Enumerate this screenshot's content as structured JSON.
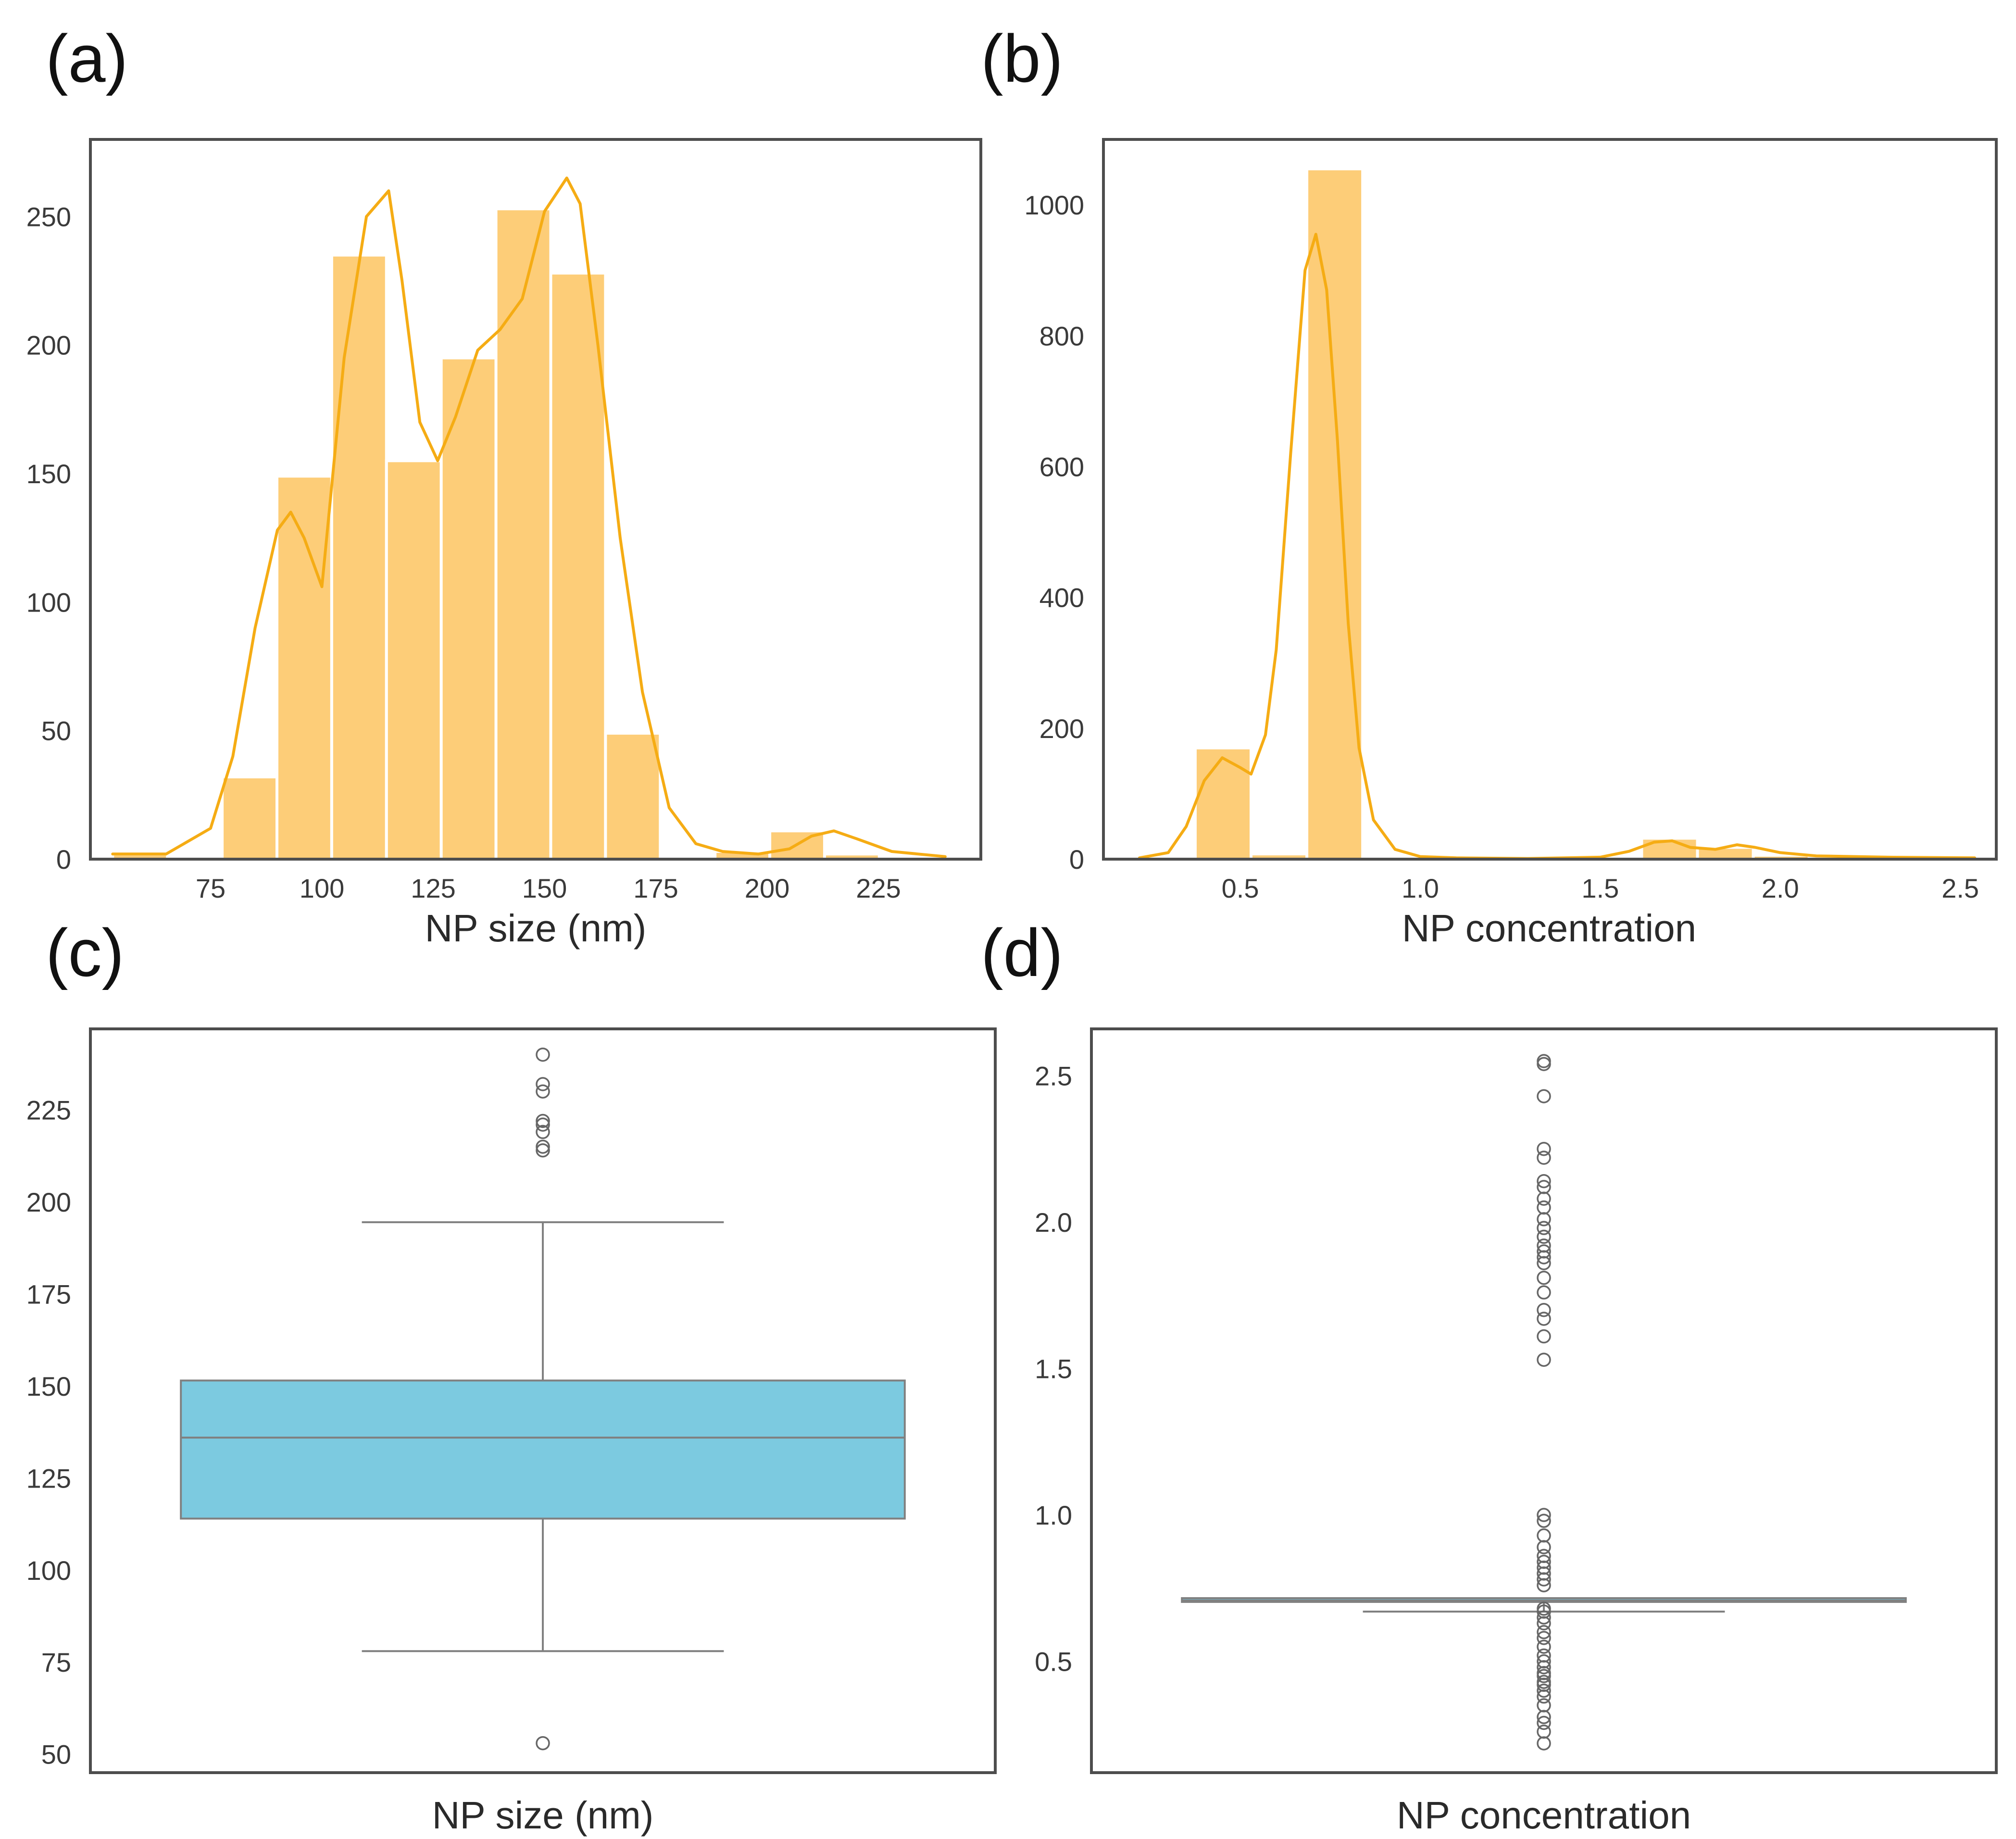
{
  "colors": {
    "hist_fill": "#fdcd78",
    "hist_edge": "#ffffff",
    "kde_line": "#f5ac14",
    "box_fill": "#7ccae0",
    "box_fill_d": "#7ab9cd",
    "box_line": "#808080",
    "frame": "#4d4d4d"
  },
  "chart_data": [
    {
      "panel": "(a)",
      "type": "bar",
      "subtype": "histogram-with-kde",
      "xlabel": "NP size (nm)",
      "ylabel": "",
      "xlim": [
        48,
        248
      ],
      "ylim": [
        0,
        280
      ],
      "xticks": [
        75,
        100,
        125,
        150,
        175,
        200,
        225
      ],
      "xtick_labels": [
        "75",
        "100",
        "125",
        "150",
        "175",
        "200",
        "225"
      ],
      "yticks": [
        0,
        50,
        100,
        150,
        200,
        250
      ],
      "ytick_labels": [
        "0",
        "50",
        "100",
        "150",
        "200",
        "250"
      ],
      "bin_edges": [
        53.0,
        65.3,
        77.6,
        89.9,
        102.2,
        114.5,
        126.8,
        139.1,
        151.4,
        163.7,
        176.0,
        188.3,
        200.6,
        212.9,
        225.2,
        237.5
      ],
      "counts": [
        2,
        0,
        32,
        149,
        235,
        155,
        195,
        253,
        228,
        49,
        0,
        3,
        11,
        2,
        1
      ],
      "kde_x": [
        53,
        65,
        75,
        80,
        85,
        90,
        93,
        96,
        100,
        105,
        110,
        115,
        118,
        122,
        126,
        130,
        135,
        140,
        145,
        150,
        155,
        158,
        162,
        167,
        172,
        178,
        184,
        190,
        198,
        205,
        210,
        215,
        220,
        228,
        240
      ],
      "kde_y": [
        2,
        2,
        12,
        40,
        90,
        128,
        135,
        125,
        106,
        195,
        250,
        260,
        225,
        170,
        155,
        172,
        198,
        206,
        218,
        252,
        265,
        255,
        200,
        125,
        65,
        20,
        6,
        3,
        2,
        4,
        9,
        11,
        8,
        3,
        1
      ]
    },
    {
      "panel": "(b)",
      "type": "bar",
      "subtype": "histogram-with-kde",
      "xlabel": "NP concentration",
      "ylabel": "",
      "xlim": [
        0.12,
        2.6
      ],
      "ylim": [
        0,
        1100
      ],
      "xticks": [
        0.5,
        1.0,
        1.5,
        2.0,
        2.5
      ],
      "xtick_labels": [
        "0.5",
        "1.0",
        "1.5",
        "2.0",
        "2.5"
      ],
      "yticks": [
        0,
        200,
        400,
        600,
        800,
        1000
      ],
      "ytick_labels": [
        "0",
        "200",
        "400",
        "600",
        "800",
        "1000"
      ],
      "bin_edges": [
        0.22,
        0.375,
        0.53,
        0.685,
        0.84,
        0.995,
        1.15,
        1.305,
        1.46,
        1.615,
        1.77,
        1.925,
        2.08,
        2.235,
        2.39,
        2.545
      ],
      "counts": [
        0,
        170,
        8,
        1055,
        0,
        0,
        0,
        0,
        0,
        32,
        18,
        6,
        3,
        2,
        2
      ],
      "kde_x": [
        0.22,
        0.3,
        0.35,
        0.4,
        0.45,
        0.5,
        0.53,
        0.57,
        0.6,
        0.64,
        0.68,
        0.71,
        0.74,
        0.77,
        0.8,
        0.83,
        0.87,
        0.93,
        1.0,
        1.1,
        1.3,
        1.5,
        1.58,
        1.65,
        1.7,
        1.75,
        1.82,
        1.88,
        1.93,
        2.0,
        2.1,
        2.3,
        2.54
      ],
      "kde_y": [
        2,
        10,
        50,
        120,
        155,
        140,
        130,
        190,
        320,
        620,
        900,
        955,
        870,
        640,
        360,
        170,
        60,
        15,
        4,
        2,
        1,
        3,
        12,
        26,
        28,
        18,
        15,
        22,
        18,
        10,
        5,
        3,
        2
      ]
    },
    {
      "panel": "(c)",
      "type": "box",
      "xlabel": "NP size (nm)",
      "ylabel": "",
      "ylim": [
        45,
        247
      ],
      "yticks": [
        50,
        75,
        100,
        125,
        150,
        175,
        200,
        225
      ],
      "ytick_labels": [
        "50",
        "75",
        "100",
        "125",
        "150",
        "175",
        "200",
        "225"
      ],
      "q1": 114,
      "median": 136,
      "q3": 151.5,
      "whisker_low": 78,
      "whisker_high": 194.5,
      "outliers": [
        53,
        214,
        215,
        219,
        221,
        222,
        230,
        232,
        240
      ]
    },
    {
      "panel": "(d)",
      "type": "box",
      "xlabel": "NP concentration",
      "ylabel": "",
      "ylim": [
        0.12,
        2.66
      ],
      "yticks": [
        0.5,
        1.0,
        1.5,
        2.0,
        2.5
      ],
      "ytick_labels": [
        "0.5",
        "1.0",
        "1.5",
        "2.0",
        "2.5"
      ],
      "q1": 0.703,
      "median": 0.708,
      "q3": 0.716,
      "whisker_low": 0.67,
      "whisker_high": 0.716,
      "outliers": [
        0.22,
        0.26,
        0.29,
        0.31,
        0.35,
        0.38,
        0.4,
        0.42,
        0.43,
        0.45,
        0.46,
        0.48,
        0.5,
        0.52,
        0.55,
        0.58,
        0.6,
        0.63,
        0.65,
        0.67,
        0.68,
        0.76,
        0.78,
        0.8,
        0.82,
        0.84,
        0.86,
        0.89,
        0.93,
        0.98,
        1.0,
        1.53,
        1.61,
        1.67,
        1.7,
        1.76,
        1.81,
        1.86,
        1.88,
        1.9,
        1.92,
        1.95,
        1.98,
        2.01,
        2.05,
        2.08,
        2.12,
        2.14,
        2.22,
        2.25,
        2.43,
        2.54,
        2.55
      ]
    }
  ]
}
